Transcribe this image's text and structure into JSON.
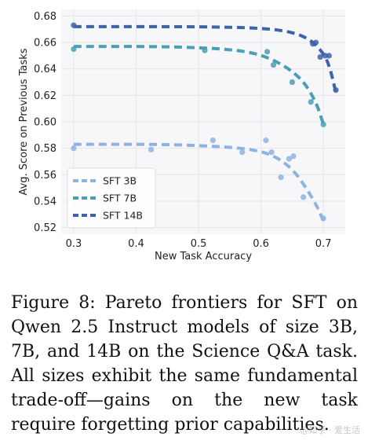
{
  "chart_data": {
    "type": "scatter",
    "xlabel": "New Task Accuracy",
    "ylabel": "Avg. Score on Previous Tasks",
    "xlim": [
      0.28,
      0.735
    ],
    "ylim": [
      0.515,
      0.685
    ],
    "xticks": [
      0.3,
      0.4,
      0.5,
      0.6,
      0.7
    ],
    "yticks": [
      0.52,
      0.54,
      0.56,
      0.58,
      0.6,
      0.62,
      0.64,
      0.66,
      0.68
    ],
    "xtick_labels": [
      "0.3",
      "0.4",
      "0.5",
      "0.6",
      "0.7"
    ],
    "ytick_labels": [
      "0.52",
      "0.54",
      "0.56",
      "0.58",
      "0.60",
      "0.62",
      "0.64",
      "0.66",
      "0.68"
    ],
    "grid": true,
    "legend_position": "bottom-left",
    "series": [
      {
        "name": "SFT 3B",
        "color": "#8db3e2",
        "points": [
          [
            0.3,
            0.58
          ],
          [
            0.424,
            0.579
          ],
          [
            0.523,
            0.586
          ],
          [
            0.57,
            0.577
          ],
          [
            0.608,
            0.586
          ],
          [
            0.617,
            0.577
          ],
          [
            0.632,
            0.558
          ],
          [
            0.645,
            0.572
          ],
          [
            0.652,
            0.574
          ],
          [
            0.668,
            0.543
          ],
          [
            0.7,
            0.527
          ]
        ],
        "frontier": [
          [
            0.3,
            0.583
          ],
          [
            0.45,
            0.583
          ],
          [
            0.55,
            0.581
          ],
          [
            0.6,
            0.578
          ],
          [
            0.63,
            0.572
          ],
          [
            0.655,
            0.562
          ],
          [
            0.675,
            0.548
          ],
          [
            0.69,
            0.536
          ],
          [
            0.7,
            0.525
          ]
        ]
      },
      {
        "name": "SFT 7B",
        "color": "#4a9fb5",
        "points": [
          [
            0.3,
            0.655
          ],
          [
            0.51,
            0.654
          ],
          [
            0.61,
            0.653
          ],
          [
            0.62,
            0.643
          ],
          [
            0.65,
            0.63
          ],
          [
            0.68,
            0.615
          ],
          [
            0.7,
            0.598
          ]
        ],
        "frontier": [
          [
            0.3,
            0.657
          ],
          [
            0.45,
            0.657
          ],
          [
            0.55,
            0.655
          ],
          [
            0.6,
            0.651
          ],
          [
            0.64,
            0.642
          ],
          [
            0.67,
            0.63
          ],
          [
            0.69,
            0.613
          ],
          [
            0.7,
            0.598
          ]
        ]
      },
      {
        "name": "SFT 14B",
        "color": "#3d63a8",
        "points": [
          [
            0.3,
            0.673
          ],
          [
            0.683,
            0.659
          ],
          [
            0.688,
            0.66
          ],
          [
            0.695,
            0.649
          ],
          [
            0.703,
            0.65
          ],
          [
            0.709,
            0.65
          ],
          [
            0.72,
            0.624
          ]
        ],
        "frontier": [
          [
            0.3,
            0.672
          ],
          [
            0.5,
            0.672
          ],
          [
            0.6,
            0.671
          ],
          [
            0.65,
            0.668
          ],
          [
            0.68,
            0.662
          ],
          [
            0.7,
            0.652
          ],
          [
            0.71,
            0.642
          ],
          [
            0.72,
            0.622
          ]
        ]
      }
    ]
  },
  "caption": "Figure 8: Pareto frontiers for SFT on Qwen 2.5 Instruct models of size 3B, 7B, and 14B on the Science Q&A task. All sizes exhibit the same fundamental trade-off—gains on the new task require forgetting prior capabilities.",
  "watermark": "@知乎 · 爱生活"
}
